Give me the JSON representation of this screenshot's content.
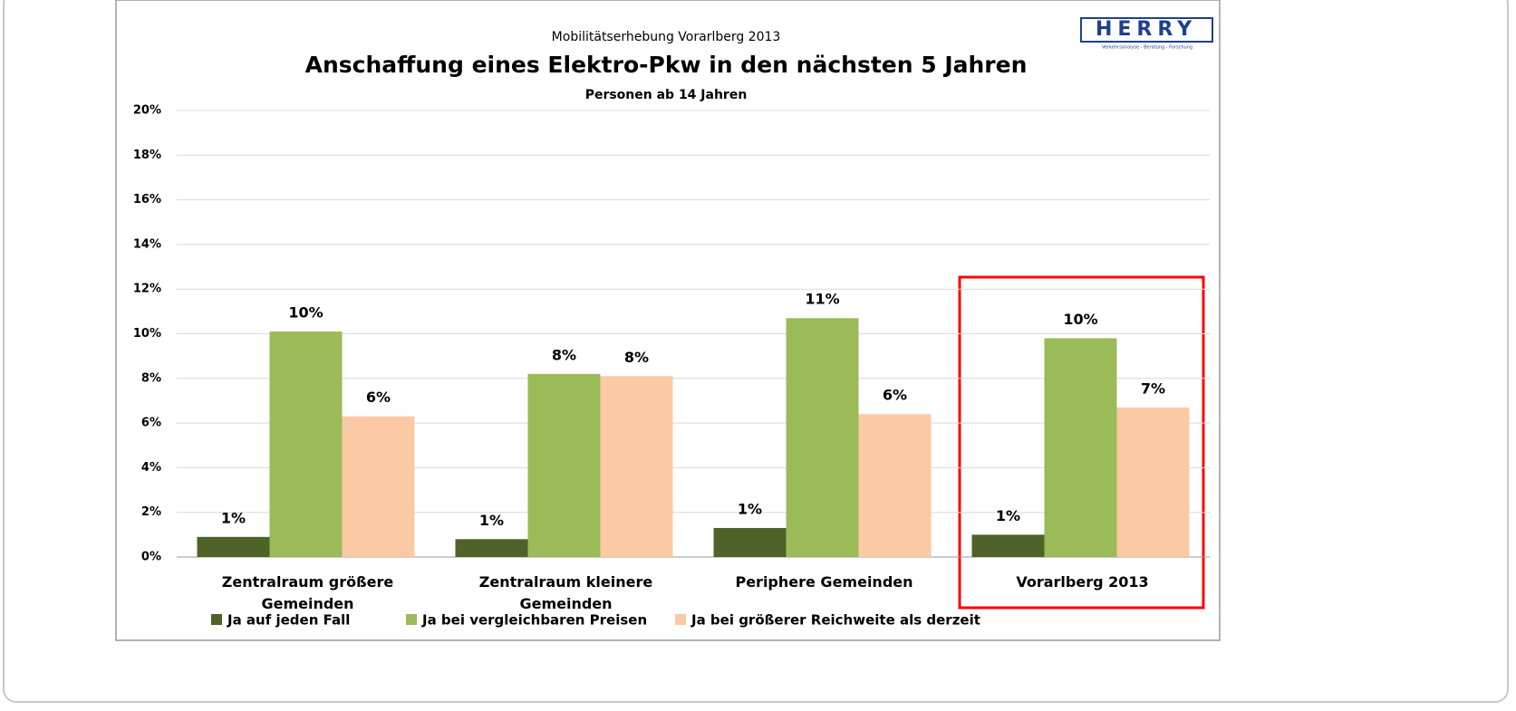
{
  "chart_data": {
    "type": "bar",
    "subtitle": "Mobilitätserhebung Vorarlberg 2013",
    "title": "Anschaffung eines Elektro-Pkw in den nächsten 5 Jahren",
    "note": "Personen ab 14 Jahren",
    "categories": [
      "Zentralraum größere Gemeinden",
      "Zentralraum kleinere Gemeinden",
      "Periphere Gemeinden",
      "Vorarlberg 2013"
    ],
    "series": [
      {
        "name": "Ja auf jeden Fall",
        "color": "#4f6228",
        "values": [
          0.9,
          0.8,
          1.3,
          1.0
        ],
        "value_labels": [
          "1%",
          "1%",
          "1%",
          "1%"
        ]
      },
      {
        "name": "Ja bei vergleichbaren Preisen",
        "color": "#9bbb59",
        "values": [
          10.1,
          8.2,
          10.7,
          9.8
        ],
        "value_labels": [
          "10%",
          "8%",
          "11%",
          "10%"
        ]
      },
      {
        "name": "Ja bei größerer Reichweite als derzeit",
        "color": "#fbc9a4",
        "values": [
          6.3,
          8.1,
          6.4,
          6.7
        ],
        "value_labels": [
          "6%",
          "8%",
          "6%",
          "7%"
        ]
      }
    ],
    "ylim": [
      0,
      20
    ],
    "yticks": [
      {
        "value": 0,
        "label": "0%"
      },
      {
        "value": 2,
        "label": "2%"
      },
      {
        "value": 4,
        "label": "4%"
      },
      {
        "value": 6,
        "label": "6%"
      },
      {
        "value": 8,
        "label": "8%"
      },
      {
        "value": 10,
        "label": "10%"
      },
      {
        "value": 12,
        "label": "12%"
      },
      {
        "value": 14,
        "label": "14%"
      },
      {
        "value": 16,
        "label": "16%"
      },
      {
        "value": 18,
        "label": "18%"
      },
      {
        "value": 20,
        "label": "20%"
      }
    ],
    "grid": true,
    "legend": "bottom"
  },
  "logo": {
    "name": "HERRY",
    "tagline": "Verkehrsanalyse - Beratung - Forschung"
  }
}
